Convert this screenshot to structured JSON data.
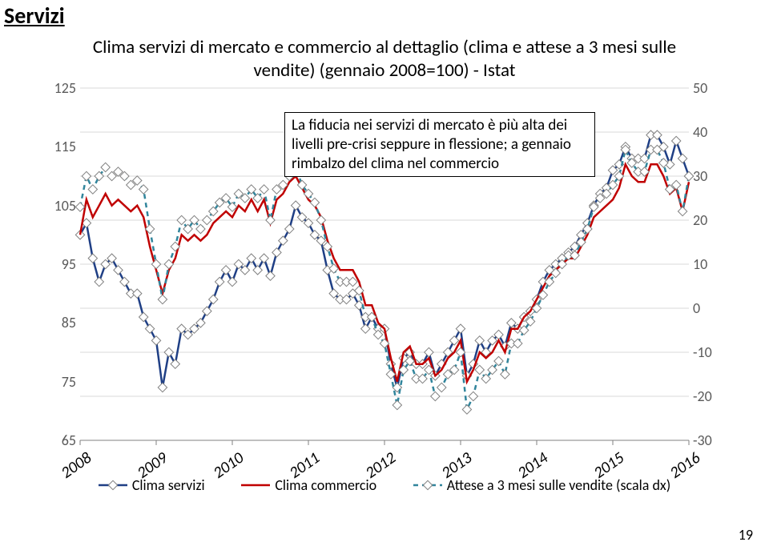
{
  "page": {
    "section_title": "Servizi",
    "page_number": "19"
  },
  "chart": {
    "type": "line",
    "title": "Clima servizi di mercato e commercio al dettaglio (clima e attese a 3 mesi sulle vendite) (gennaio 2008=100) - Istat",
    "info_box": "La fiducia nei servizi di mercato è più alta dei livelli pre-crisi seppure in flessione; a gennaio rimbalzo del clima nel commercio",
    "background_color": "#ffffff",
    "grid_color": "#d9d9d9",
    "axis_color": "#808080",
    "y_left": {
      "min": 65,
      "max": 125,
      "step": 10,
      "ticks": [
        "65",
        "75",
        "85",
        "95",
        "105",
        "115",
        "125"
      ]
    },
    "y_right": {
      "min": -30,
      "max": 50,
      "step": 10,
      "ticks": [
        "-30",
        "-20",
        "-10",
        "0",
        "10",
        "20",
        "30",
        "40",
        "50"
      ]
    },
    "x_labels": [
      "2008",
      "2009",
      "2010",
      "2011",
      "2012",
      "2013",
      "2014",
      "2015",
      "2016"
    ],
    "x_count_months": 97,
    "series": [
      {
        "name": "Clima servizi",
        "legend": "Clima servizi",
        "axis": "left",
        "color": "#1f3f85",
        "width": 2.5,
        "dash": "",
        "marker": "diamond",
        "marker_color": "#ffffff",
        "marker_stroke": "#808080",
        "marker_size": 4,
        "values": [
          100,
          102,
          96,
          92,
          95,
          96,
          94,
          92,
          90,
          90,
          86,
          84,
          82,
          74,
          80,
          78,
          84,
          83,
          84,
          85,
          87,
          89,
          92,
          94,
          92,
          95,
          94,
          96,
          94,
          96,
          93,
          97,
          99,
          101,
          105,
          103,
          102,
          100,
          99,
          94,
          90,
          89,
          89,
          90,
          88,
          84,
          86,
          84,
          84,
          78,
          74,
          79,
          80,
          78,
          78,
          80,
          76,
          78,
          80,
          82,
          84,
          76,
          78,
          82,
          80,
          82,
          83,
          81,
          85,
          84,
          86,
          87,
          89,
          92,
          94,
          95,
          96,
          97,
          98,
          100,
          102,
          105,
          107,
          108,
          111,
          112,
          115,
          113,
          113,
          113,
          117,
          117,
          115,
          112,
          116,
          113,
          110
        ]
      },
      {
        "name": "Clima commercio",
        "legend": "Clima commercio",
        "axis": "left",
        "color": "#c00000",
        "width": 2.5,
        "dash": "",
        "marker": "",
        "values": [
          100,
          106,
          103,
          105,
          107,
          105,
          106,
          105,
          104,
          105,
          103,
          98,
          94,
          90,
          94,
          96,
          100,
          99,
          100,
          99,
          100,
          102,
          103,
          104,
          103,
          105,
          104,
          106,
          104,
          106,
          102,
          106,
          107,
          109,
          110,
          108,
          106,
          105,
          103,
          99,
          96,
          94,
          94,
          94,
          92,
          88,
          88,
          85,
          84,
          79,
          75,
          80,
          81,
          78,
          78,
          79,
          76,
          77,
          79,
          80,
          82,
          75,
          77,
          80,
          79,
          80,
          82,
          80,
          84,
          84,
          86,
          87,
          89,
          91,
          93,
          94,
          95,
          96,
          96,
          98,
          100,
          103,
          104,
          105,
          106,
          108,
          112,
          110,
          109,
          109,
          112,
          112,
          110,
          107,
          108,
          104,
          109
        ]
      },
      {
        "name": "Attese a 3 mesi sulle vendite (scala dx)",
        "legend": "Attese a 3 mesi sulle vendite (scala dx)",
        "axis": "right",
        "color": "#31859c",
        "width": 2.5,
        "dash": "6 5",
        "marker": "diamond",
        "marker_color": "#ffffff",
        "marker_stroke": "#808080",
        "marker_size": 4,
        "values": [
          23,
          30,
          27,
          30,
          32,
          30,
          31,
          30,
          28,
          29,
          27,
          18,
          10,
          2,
          10,
          14,
          20,
          18,
          20,
          18,
          20,
          22,
          24,
          25,
          23,
          26,
          25,
          27,
          25,
          27,
          20,
          27,
          28,
          30,
          32,
          28,
          26,
          24,
          20,
          14,
          9,
          6,
          6,
          6,
          4,
          -2,
          -2,
          -6,
          -8,
          -15,
          -22,
          -14,
          -12,
          -16,
          -16,
          -14,
          -20,
          -18,
          -15,
          -14,
          -10,
          -23,
          -20,
          -14,
          -16,
          -14,
          -12,
          -15,
          -8,
          -8,
          -5,
          -3,
          0,
          3,
          6,
          8,
          10,
          12,
          12,
          15,
          18,
          23,
          25,
          26,
          28,
          30,
          36,
          33,
          31,
          31,
          36,
          36,
          33,
          27,
          28,
          22,
          30
        ]
      }
    ]
  }
}
